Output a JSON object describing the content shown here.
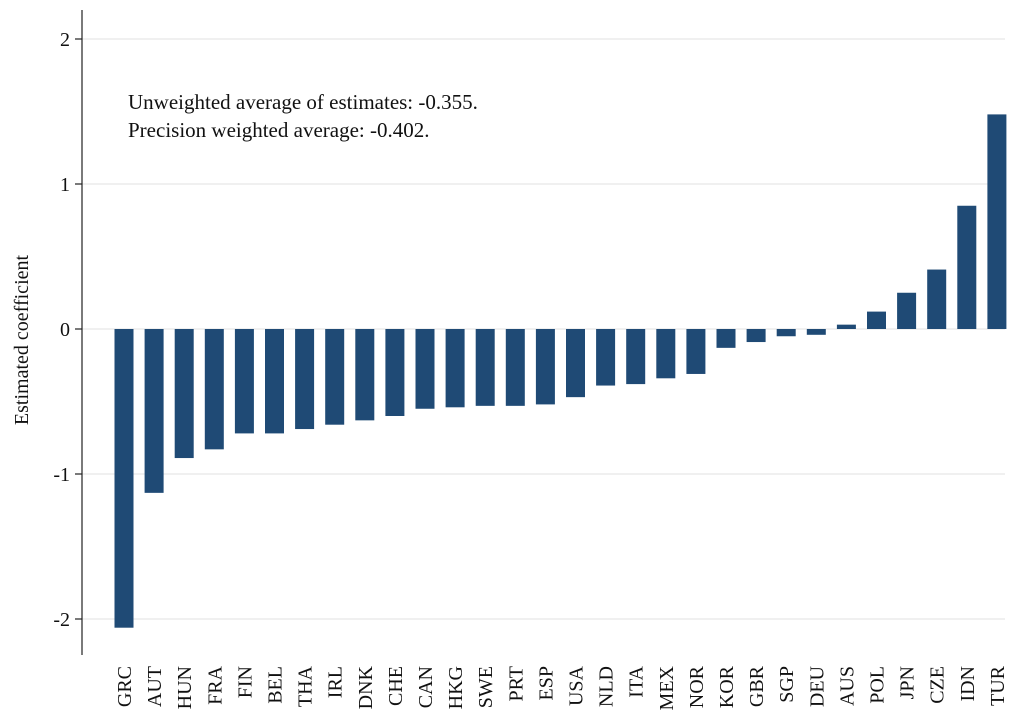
{
  "chart_data": {
    "type": "bar",
    "ylabel": "Estimated coefficient",
    "xlabel": "",
    "ylim": [
      -2.2,
      2.2
    ],
    "yticks": [
      -2,
      -1,
      0,
      1,
      2
    ],
    "ytick_labels": [
      "-2",
      "-1",
      "0",
      "1",
      "2"
    ],
    "grid": true,
    "annotations": [
      "Unweighted average of estimates: -0.355.",
      "Precision weighted average: -0.402."
    ],
    "bar_color": "#1f4a75",
    "categories": [
      "GRC",
      "AUT",
      "HUN",
      "FRA",
      "FIN",
      "BEL",
      "THA",
      "IRL",
      "DNK",
      "CHE",
      "CAN",
      "HKG",
      "SWE",
      "PRT",
      "ESP",
      "USA",
      "NLD",
      "ITA",
      "MEX",
      "NOR",
      "KOR",
      "GBR",
      "SGP",
      "DEU",
      "AUS",
      "POL",
      "JPN",
      "CZE",
      "IDN",
      "TUR"
    ],
    "values": [
      -2.06,
      -1.13,
      -0.89,
      -0.83,
      -0.72,
      -0.72,
      -0.69,
      -0.66,
      -0.63,
      -0.6,
      -0.55,
      -0.54,
      -0.53,
      -0.53,
      -0.52,
      -0.47,
      -0.39,
      -0.38,
      -0.34,
      -0.31,
      -0.13,
      -0.09,
      -0.05,
      -0.04,
      0.03,
      0.12,
      0.25,
      0.41,
      0.85,
      1.48
    ]
  }
}
